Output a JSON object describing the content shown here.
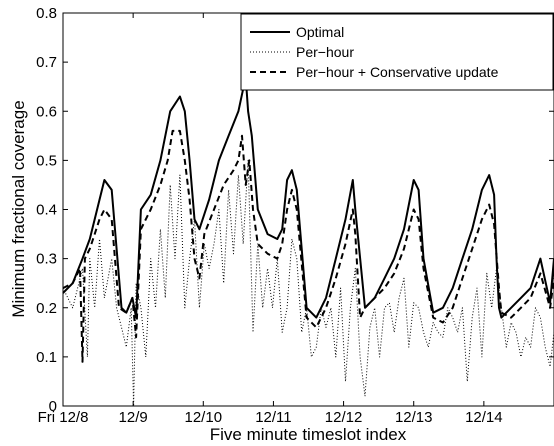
{
  "chart_data": {
    "type": "line",
    "xlabel": "Five minute timeslot index",
    "ylabel": "Minimum fractional coverage",
    "ylim": [
      0,
      0.8
    ],
    "xlim": [
      0,
      2016
    ],
    "yticks": [
      "0",
      "0.1",
      "0.2",
      "0.3",
      "0.4",
      "0.5",
      "0.6",
      "0.7",
      "0.8"
    ],
    "xticks": [
      {
        "label": "Fri 12/8",
        "x": 0
      },
      {
        "label": "12/9",
        "x": 288
      },
      {
        "label": "12/10",
        "x": 576
      },
      {
        "label": "12/11",
        "x": 864
      },
      {
        "label": "12/12",
        "x": 1152
      },
      {
        "label": "12/13",
        "x": 1440
      },
      {
        "label": "12/14",
        "x": 1728
      }
    ],
    "legend_position": "top-right",
    "series": [
      {
        "name": "Optimal",
        "style": "solid",
        "x": [
          0,
          40,
          80,
          110,
          130,
          150,
          170,
          200,
          240,
          260,
          285,
          300,
          320,
          360,
          400,
          440,
          480,
          500,
          520,
          540,
          560,
          600,
          640,
          680,
          720,
          750,
          760,
          775,
          800,
          840,
          880,
          900,
          920,
          940,
          960,
          1000,
          1040,
          1080,
          1120,
          1160,
          1190,
          1200,
          1240,
          1280,
          1320,
          1360,
          1400,
          1440,
          1460,
          1480,
          1520,
          1560,
          1600,
          1640,
          1680,
          1720,
          1750,
          1770,
          1780,
          1790,
          1800,
          1840,
          1880,
          1920,
          1960,
          2000,
          2016
        ],
        "values": [
          0.23,
          0.25,
          0.3,
          0.34,
          0.38,
          0.42,
          0.46,
          0.44,
          0.2,
          0.19,
          0.22,
          0.18,
          0.4,
          0.43,
          0.5,
          0.6,
          0.63,
          0.6,
          0.5,
          0.38,
          0.36,
          0.42,
          0.5,
          0.55,
          0.6,
          0.67,
          0.6,
          0.55,
          0.4,
          0.35,
          0.34,
          0.36,
          0.46,
          0.48,
          0.44,
          0.2,
          0.18,
          0.22,
          0.3,
          0.38,
          0.46,
          0.4,
          0.2,
          0.22,
          0.26,
          0.3,
          0.36,
          0.46,
          0.44,
          0.3,
          0.19,
          0.2,
          0.24,
          0.3,
          0.36,
          0.44,
          0.47,
          0.43,
          0.3,
          0.2,
          0.18,
          0.2,
          0.22,
          0.24,
          0.3,
          0.21,
          0.3
        ]
      },
      {
        "name": "Per−hour",
        "style": "dotted",
        "x": [
          0,
          40,
          80,
          100,
          110,
          130,
          150,
          170,
          200,
          220,
          240,
          260,
          280,
          290,
          300,
          320,
          340,
          360,
          380,
          400,
          420,
          440,
          460,
          480,
          500,
          520,
          540,
          560,
          580,
          600,
          620,
          640,
          660,
          680,
          700,
          720,
          740,
          760,
          780,
          800,
          820,
          840,
          860,
          880,
          900,
          920,
          940,
          960,
          980,
          1000,
          1020,
          1040,
          1060,
          1080,
          1100,
          1120,
          1140,
          1160,
          1180,
          1200,
          1220,
          1240,
          1260,
          1280,
          1300,
          1320,
          1340,
          1360,
          1380,
          1400,
          1420,
          1440,
          1460,
          1480,
          1500,
          1520,
          1540,
          1560,
          1580,
          1600,
          1620,
          1640,
          1660,
          1680,
          1700,
          1720,
          1740,
          1760,
          1780,
          1800,
          1820,
          1840,
          1860,
          1880,
          1900,
          1920,
          1940,
          1960,
          1980,
          2000,
          2016
        ],
        "values": [
          0.24,
          0.2,
          0.28,
          0.1,
          0.3,
          0.2,
          0.34,
          0.22,
          0.3,
          0.2,
          0.16,
          0.12,
          0.2,
          0.0,
          0.25,
          0.2,
          0.1,
          0.3,
          0.2,
          0.36,
          0.22,
          0.45,
          0.3,
          0.47,
          0.2,
          0.3,
          0.38,
          0.2,
          0.33,
          0.28,
          0.33,
          0.4,
          0.25,
          0.44,
          0.31,
          0.47,
          0.33,
          0.5,
          0.15,
          0.33,
          0.2,
          0.28,
          0.2,
          0.3,
          0.15,
          0.2,
          0.34,
          0.3,
          0.15,
          0.2,
          0.1,
          0.12,
          0.2,
          0.16,
          0.2,
          0.1,
          0.24,
          0.05,
          0.2,
          0.28,
          0.1,
          0.02,
          0.16,
          0.2,
          0.1,
          0.2,
          0.21,
          0.15,
          0.22,
          0.26,
          0.12,
          0.21,
          0.2,
          0.15,
          0.12,
          0.17,
          0.15,
          0.14,
          0.2,
          0.18,
          0.15,
          0.2,
          0.05,
          0.18,
          0.24,
          0.1,
          0.27,
          0.2,
          0.28,
          0.2,
          0.12,
          0.17,
          0.15,
          0.1,
          0.14,
          0.12,
          0.2,
          0.18,
          0.12,
          0.08,
          0.15
        ]
      },
      {
        "name": "Per−hour + Conservative update",
        "style": "dashed",
        "x": [
          0,
          40,
          70,
          80,
          90,
          110,
          130,
          150,
          170,
          200,
          230,
          260,
          285,
          300,
          320,
          360,
          400,
          430,
          450,
          480,
          500,
          520,
          540,
          560,
          580,
          620,
          660,
          700,
          720,
          735,
          750,
          765,
          780,
          800,
          840,
          880,
          900,
          920,
          940,
          960,
          1000,
          1040,
          1080,
          1120,
          1160,
          1190,
          1200,
          1220,
          1240,
          1280,
          1320,
          1360,
          1400,
          1440,
          1460,
          1480,
          1520,
          1560,
          1600,
          1640,
          1680,
          1720,
          1750,
          1770,
          1790,
          1800,
          1840,
          1880,
          1920,
          1960,
          2000,
          2016
        ],
        "values": [
          0.24,
          0.25,
          0.28,
          0.09,
          0.3,
          0.32,
          0.35,
          0.38,
          0.4,
          0.38,
          0.2,
          0.19,
          0.22,
          0.14,
          0.36,
          0.4,
          0.45,
          0.5,
          0.56,
          0.56,
          0.5,
          0.42,
          0.3,
          0.26,
          0.35,
          0.4,
          0.45,
          0.48,
          0.5,
          0.55,
          0.45,
          0.5,
          0.4,
          0.33,
          0.31,
          0.3,
          0.33,
          0.4,
          0.44,
          0.4,
          0.18,
          0.16,
          0.2,
          0.26,
          0.33,
          0.4,
          0.35,
          0.18,
          0.2,
          0.22,
          0.24,
          0.27,
          0.32,
          0.4,
          0.38,
          0.28,
          0.18,
          0.17,
          0.2,
          0.26,
          0.32,
          0.38,
          0.41,
          0.37,
          0.24,
          0.19,
          0.18,
          0.2,
          0.22,
          0.27,
          0.2,
          0.26
        ]
      }
    ]
  }
}
